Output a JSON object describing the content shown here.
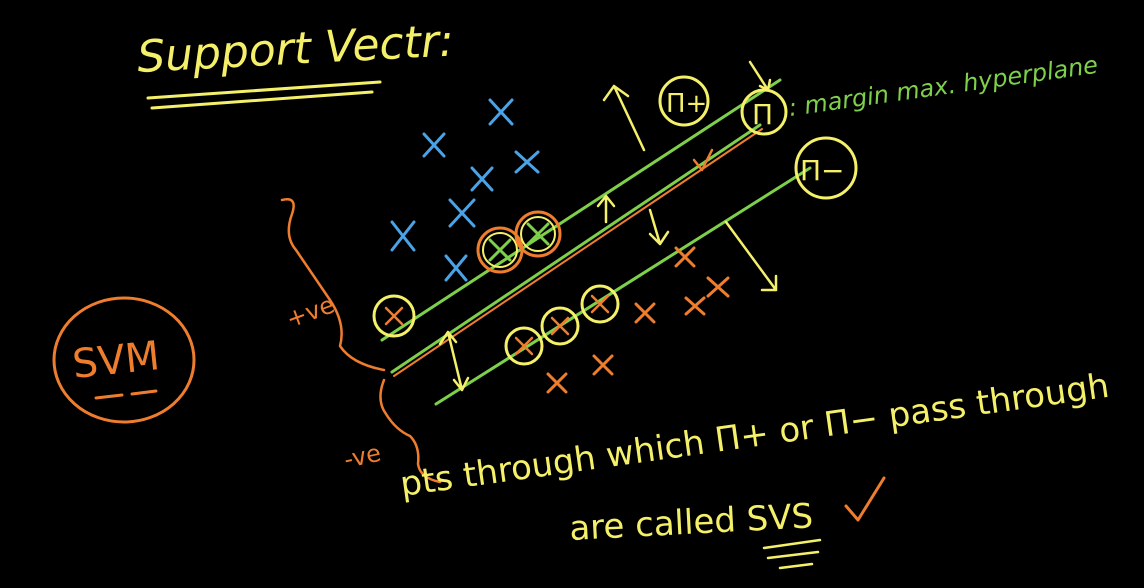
{
  "colors": {
    "background": "#000000",
    "yellow": "#f4f06a",
    "green": "#7ed04b",
    "blue": "#4aa3e6",
    "orange": "#ee7d2e"
  },
  "labels": {
    "title": "Support Vectr:",
    "svm": "SVM",
    "pi_plus": "Π+",
    "pi_center": "Π",
    "pi_minus": "Π−",
    "margin_note": ": margin max. hyperplane",
    "positive": "+ve",
    "negative": "-ve",
    "caption_line1": "pts through which Π+ or Π− pass through",
    "caption_line2": "are called SVS"
  },
  "icons": {
    "cross": "cross-mark",
    "check": "check-mark",
    "arrow": "arrow"
  }
}
